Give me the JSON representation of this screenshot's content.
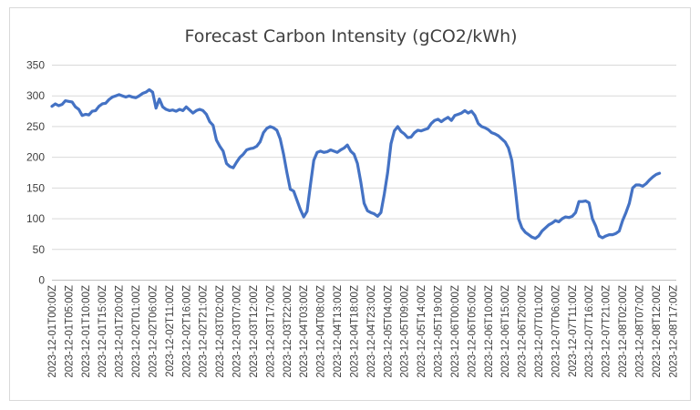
{
  "chart_data": {
    "type": "line",
    "title": "Forecast Carbon Intensity (gCO2/kWh)",
    "ylim": [
      0,
      350
    ],
    "yticks": [
      0,
      50,
      100,
      150,
      200,
      250,
      300,
      350
    ],
    "x_tick_labels": [
      "2023-12-01T00:00Z",
      "2023-12-01T05:00Z",
      "2023-12-01T10:00Z",
      "2023-12-01T15:00Z",
      "2023-12-01T20:00Z",
      "2023-12-02T01:00Z",
      "2023-12-02T06:00Z",
      "2023-12-02T11:00Z",
      "2023-12-02T16:00Z",
      "2023-12-02T21:00Z",
      "2023-12-03T02:00Z",
      "2023-12-03T07:00Z",
      "2023-12-03T12:00Z",
      "2023-12-03T17:00Z",
      "2023-12-03T22:00Z",
      "2023-12-04T03:00Z",
      "2023-12-04T08:00Z",
      "2023-12-04T13:00Z",
      "2023-12-04T18:00Z",
      "2023-12-04T23:00Z",
      "2023-12-05T04:00Z",
      "2023-12-05T09:00Z",
      "2023-12-05T14:00Z",
      "2023-12-05T19:00Z",
      "2023-12-06T00:00Z",
      "2023-12-06T05:00Z",
      "2023-12-06T10:00Z",
      "2023-12-06T15:00Z",
      "2023-12-06T20:00Z",
      "2023-12-07T01:00Z",
      "2023-12-07T06:00Z",
      "2023-12-07T11:00Z",
      "2023-12-07T16:00Z",
      "2023-12-07T21:00Z",
      "2023-12-08T02:00Z",
      "2023-12-08T07:00Z",
      "2023-12-08T12:00Z",
      "2023-12-08T17:00Z"
    ],
    "x_range": [
      "2023-12-01T00:00Z",
      "2023-12-08T18:00Z"
    ],
    "grid": "horizontal",
    "legend": "none",
    "color": "#4472c4",
    "series": [
      {
        "points": [
          [
            "2023-12-01T00:00Z",
            283
          ],
          [
            "2023-12-01T01:00Z",
            287
          ],
          [
            "2023-12-01T02:00Z",
            284
          ],
          [
            "2023-12-01T03:00Z",
            286
          ],
          [
            "2023-12-01T04:00Z",
            292
          ],
          [
            "2023-12-01T05:00Z",
            291
          ],
          [
            "2023-12-01T06:00Z",
            290
          ],
          [
            "2023-12-01T07:00Z",
            282
          ],
          [
            "2023-12-01T08:00Z",
            278
          ],
          [
            "2023-12-01T09:00Z",
            268
          ],
          [
            "2023-12-01T10:00Z",
            270
          ],
          [
            "2023-12-01T11:00Z",
            269
          ],
          [
            "2023-12-01T12:00Z",
            275
          ],
          [
            "2023-12-01T13:00Z",
            276
          ],
          [
            "2023-12-01T14:00Z",
            283
          ],
          [
            "2023-12-01T15:00Z",
            287
          ],
          [
            "2023-12-01T16:00Z",
            288
          ],
          [
            "2023-12-01T17:00Z",
            294
          ],
          [
            "2023-12-01T18:00Z",
            298
          ],
          [
            "2023-12-01T19:00Z",
            300
          ],
          [
            "2023-12-01T20:00Z",
            302
          ],
          [
            "2023-12-01T21:00Z",
            300
          ],
          [
            "2023-12-01T22:00Z",
            298
          ],
          [
            "2023-12-01T23:00Z",
            300
          ],
          [
            "2023-12-02T00:00Z",
            298
          ],
          [
            "2023-12-02T01:00Z",
            297
          ],
          [
            "2023-12-02T02:00Z",
            300
          ],
          [
            "2023-12-02T03:00Z",
            304
          ],
          [
            "2023-12-02T04:00Z",
            306
          ],
          [
            "2023-12-02T05:00Z",
            310
          ],
          [
            "2023-12-02T06:00Z",
            306
          ],
          [
            "2023-12-02T07:00Z",
            280
          ],
          [
            "2023-12-02T08:00Z",
            295
          ],
          [
            "2023-12-02T09:00Z",
            282
          ],
          [
            "2023-12-02T10:00Z",
            278
          ],
          [
            "2023-12-02T11:00Z",
            276
          ],
          [
            "2023-12-02T12:00Z",
            277
          ],
          [
            "2023-12-02T13:00Z",
            275
          ],
          [
            "2023-12-02T14:00Z",
            278
          ],
          [
            "2023-12-02T15:00Z",
            276
          ],
          [
            "2023-12-02T16:00Z",
            282
          ],
          [
            "2023-12-02T17:00Z",
            277
          ],
          [
            "2023-12-02T18:00Z",
            272
          ],
          [
            "2023-12-02T19:00Z",
            276
          ],
          [
            "2023-12-02T20:00Z",
            278
          ],
          [
            "2023-12-02T21:00Z",
            276
          ],
          [
            "2023-12-02T22:00Z",
            270
          ],
          [
            "2023-12-02T23:00Z",
            258
          ],
          [
            "2023-12-03T00:00Z",
            252
          ],
          [
            "2023-12-03T01:00Z",
            228
          ],
          [
            "2023-12-03T02:00Z",
            218
          ],
          [
            "2023-12-03T03:00Z",
            210
          ],
          [
            "2023-12-03T04:00Z",
            190
          ],
          [
            "2023-12-03T05:00Z",
            185
          ],
          [
            "2023-12-03T06:00Z",
            183
          ],
          [
            "2023-12-03T07:00Z",
            192
          ],
          [
            "2023-12-03T08:00Z",
            200
          ],
          [
            "2023-12-03T09:00Z",
            205
          ],
          [
            "2023-12-03T10:00Z",
            212
          ],
          [
            "2023-12-03T11:00Z",
            214
          ],
          [
            "2023-12-03T12:00Z",
            215
          ],
          [
            "2023-12-03T13:00Z",
            218
          ],
          [
            "2023-12-03T14:00Z",
            225
          ],
          [
            "2023-12-03T15:00Z",
            240
          ],
          [
            "2023-12-03T16:00Z",
            247
          ],
          [
            "2023-12-03T17:00Z",
            250
          ],
          [
            "2023-12-03T18:00Z",
            248
          ],
          [
            "2023-12-03T19:00Z",
            244
          ],
          [
            "2023-12-03T20:00Z",
            230
          ],
          [
            "2023-12-03T21:00Z",
            205
          ],
          [
            "2023-12-03T22:00Z",
            175
          ],
          [
            "2023-12-03T23:00Z",
            148
          ],
          [
            "2023-12-04T00:00Z",
            145
          ],
          [
            "2023-12-04T01:00Z",
            130
          ],
          [
            "2023-12-04T02:00Z",
            115
          ],
          [
            "2023-12-04T03:00Z",
            103
          ],
          [
            "2023-12-04T04:00Z",
            112
          ],
          [
            "2023-12-04T05:00Z",
            155
          ],
          [
            "2023-12-04T06:00Z",
            195
          ],
          [
            "2023-12-04T07:00Z",
            208
          ],
          [
            "2023-12-04T08:00Z",
            210
          ],
          [
            "2023-12-04T09:00Z",
            208
          ],
          [
            "2023-12-04T10:00Z",
            209
          ],
          [
            "2023-12-04T11:00Z",
            212
          ],
          [
            "2023-12-04T12:00Z",
            210
          ],
          [
            "2023-12-04T13:00Z",
            208
          ],
          [
            "2023-12-04T14:00Z",
            212
          ],
          [
            "2023-12-04T15:00Z",
            215
          ],
          [
            "2023-12-04T16:00Z",
            220
          ],
          [
            "2023-12-04T17:00Z",
            210
          ],
          [
            "2023-12-04T18:00Z",
            205
          ],
          [
            "2023-12-04T19:00Z",
            190
          ],
          [
            "2023-12-04T20:00Z",
            160
          ],
          [
            "2023-12-04T21:00Z",
            125
          ],
          [
            "2023-12-04T22:00Z",
            113
          ],
          [
            "2023-12-04T23:00Z",
            110
          ],
          [
            "2023-12-05T00:00Z",
            108
          ],
          [
            "2023-12-05T01:00Z",
            104
          ],
          [
            "2023-12-05T02:00Z",
            110
          ],
          [
            "2023-12-05T03:00Z",
            140
          ],
          [
            "2023-12-05T04:00Z",
            175
          ],
          [
            "2023-12-05T05:00Z",
            222
          ],
          [
            "2023-12-05T06:00Z",
            243
          ],
          [
            "2023-12-05T07:00Z",
            250
          ],
          [
            "2023-12-05T08:00Z",
            242
          ],
          [
            "2023-12-05T09:00Z",
            238
          ],
          [
            "2023-12-05T10:00Z",
            232
          ],
          [
            "2023-12-05T11:00Z",
            233
          ],
          [
            "2023-12-05T12:00Z",
            240
          ],
          [
            "2023-12-05T13:00Z",
            244
          ],
          [
            "2023-12-05T14:00Z",
            243
          ],
          [
            "2023-12-05T15:00Z",
            245
          ],
          [
            "2023-12-05T16:00Z",
            247
          ],
          [
            "2023-12-05T17:00Z",
            255
          ],
          [
            "2023-12-05T18:00Z",
            260
          ],
          [
            "2023-12-05T19:00Z",
            262
          ],
          [
            "2023-12-05T20:00Z",
            258
          ],
          [
            "2023-12-05T21:00Z",
            262
          ],
          [
            "2023-12-05T22:00Z",
            265
          ],
          [
            "2023-12-05T23:00Z",
            260
          ],
          [
            "2023-12-06T00:00Z",
            268
          ],
          [
            "2023-12-06T01:00Z",
            270
          ],
          [
            "2023-12-06T02:00Z",
            272
          ],
          [
            "2023-12-06T03:00Z",
            276
          ],
          [
            "2023-12-06T04:00Z",
            272
          ],
          [
            "2023-12-06T05:00Z",
            275
          ],
          [
            "2023-12-06T06:00Z",
            268
          ],
          [
            "2023-12-06T07:00Z",
            255
          ],
          [
            "2023-12-06T08:00Z",
            250
          ],
          [
            "2023-12-06T09:00Z",
            248
          ],
          [
            "2023-12-06T10:00Z",
            245
          ],
          [
            "2023-12-06T11:00Z",
            240
          ],
          [
            "2023-12-06T12:00Z",
            238
          ],
          [
            "2023-12-06T13:00Z",
            235
          ],
          [
            "2023-12-06T14:00Z",
            230
          ],
          [
            "2023-12-06T15:00Z",
            225
          ],
          [
            "2023-12-06T16:00Z",
            215
          ],
          [
            "2023-12-06T17:00Z",
            195
          ],
          [
            "2023-12-06T18:00Z",
            150
          ],
          [
            "2023-12-06T19:00Z",
            100
          ],
          [
            "2023-12-06T20:00Z",
            85
          ],
          [
            "2023-12-06T21:00Z",
            78
          ],
          [
            "2023-12-06T22:00Z",
            74
          ],
          [
            "2023-12-06T23:00Z",
            70
          ],
          [
            "2023-12-07T00:00Z",
            68
          ],
          [
            "2023-12-07T01:00Z",
            72
          ],
          [
            "2023-12-07T02:00Z",
            80
          ],
          [
            "2023-12-07T03:00Z",
            85
          ],
          [
            "2023-12-07T04:00Z",
            90
          ],
          [
            "2023-12-07T05:00Z",
            93
          ],
          [
            "2023-12-07T06:00Z",
            97
          ],
          [
            "2023-12-07T07:00Z",
            95
          ],
          [
            "2023-12-07T08:00Z",
            100
          ],
          [
            "2023-12-07T09:00Z",
            103
          ],
          [
            "2023-12-07T10:00Z",
            102
          ],
          [
            "2023-12-07T11:00Z",
            104
          ],
          [
            "2023-12-07T12:00Z",
            110
          ],
          [
            "2023-12-07T13:00Z",
            128
          ],
          [
            "2023-12-07T14:00Z",
            128
          ],
          [
            "2023-12-07T15:00Z",
            129
          ],
          [
            "2023-12-07T16:00Z",
            126
          ],
          [
            "2023-12-07T17:00Z",
            100
          ],
          [
            "2023-12-07T18:00Z",
            88
          ],
          [
            "2023-12-07T19:00Z",
            72
          ],
          [
            "2023-12-07T20:00Z",
            69
          ],
          [
            "2023-12-07T21:00Z",
            72
          ],
          [
            "2023-12-07T22:00Z",
            74
          ],
          [
            "2023-12-07T23:00Z",
            74
          ],
          [
            "2023-12-08T00:00Z",
            76
          ],
          [
            "2023-12-08T01:00Z",
            80
          ],
          [
            "2023-12-08T02:00Z",
            97
          ],
          [
            "2023-12-08T03:00Z",
            110
          ],
          [
            "2023-12-08T04:00Z",
            125
          ],
          [
            "2023-12-08T05:00Z",
            150
          ],
          [
            "2023-12-08T06:00Z",
            155
          ],
          [
            "2023-12-08T07:00Z",
            155
          ],
          [
            "2023-12-08T08:00Z",
            153
          ],
          [
            "2023-12-08T09:00Z",
            157
          ],
          [
            "2023-12-08T10:00Z",
            163
          ],
          [
            "2023-12-08T11:00Z",
            168
          ],
          [
            "2023-12-08T12:00Z",
            172
          ],
          [
            "2023-12-08T13:00Z",
            174
          ]
        ]
      }
    ]
  }
}
